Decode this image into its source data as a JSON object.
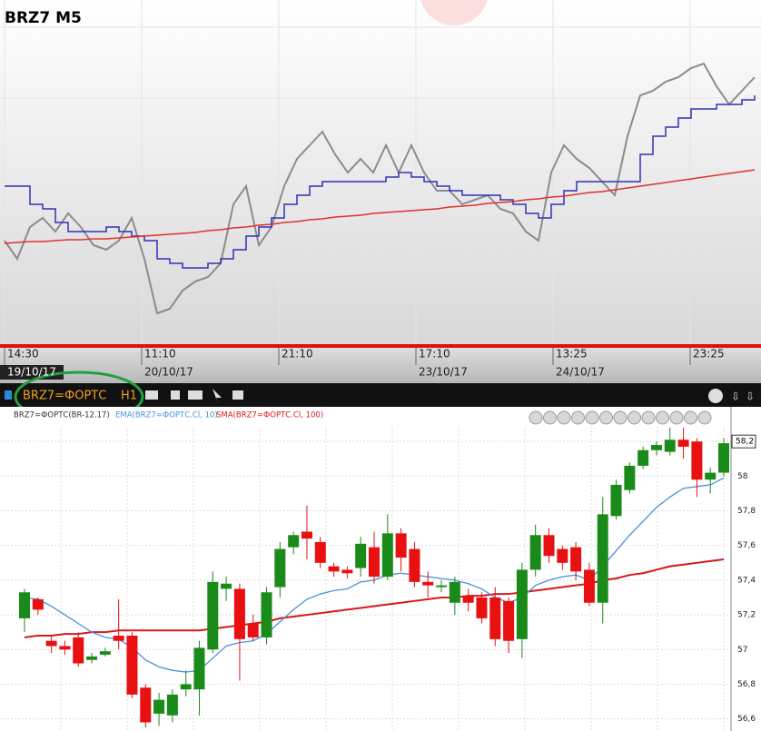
{
  "top_chart": {
    "type": "line",
    "title": "BRZ7 M5",
    "time_labels": [
      "14:30",
      "11:10",
      "21:10",
      "17:10",
      "13:25",
      "23:25"
    ],
    "date_labels": [
      "19/10/17",
      "20/10/17",
      "23/10/17",
      "24/10/17"
    ],
    "ylim": [
      0,
      358
    ],
    "series": [
      {
        "color": "#8c8c8c",
        "values": [
          113,
          93,
          128,
          138,
          123,
          143,
          128,
          108,
          103,
          113,
          138,
          93,
          33,
          38,
          58,
          68,
          73,
          88,
          153,
          173,
          108,
          128,
          173,
          203,
          218,
          233,
          208,
          188,
          203,
          188,
          218,
          188,
          218,
          188,
          168,
          168,
          153,
          158,
          163,
          148,
          143,
          123,
          113,
          188,
          218,
          203,
          193,
          178,
          163,
          228,
          273,
          278,
          288,
          293,
          303,
          308,
          283,
          263,
          278,
          293
        ]
      },
      {
        "color": "#3030b8",
        "step": true,
        "values": [
          173,
          173,
          153,
          148,
          133,
          123,
          123,
          123,
          128,
          123,
          118,
          113,
          93,
          88,
          83,
          83,
          88,
          93,
          103,
          118,
          128,
          138,
          153,
          163,
          173,
          178,
          178,
          178,
          178,
          178,
          183,
          188,
          183,
          178,
          173,
          168,
          163,
          163,
          163,
          158,
          153,
          143,
          138,
          153,
          168,
          178,
          178,
          178,
          178,
          178,
          208,
          228,
          238,
          248,
          258,
          258,
          263,
          263,
          268,
          273
        ]
      },
      {
        "color": "#e03030",
        "values": [
          110,
          111,
          112,
          112,
          113,
          114,
          114,
          115,
          115,
          116,
          117,
          118,
          119,
          120,
          121,
          122,
          124,
          125,
          127,
          128,
          130,
          131,
          133,
          134,
          136,
          137,
          139,
          140,
          141,
          143,
          144,
          145,
          146,
          147,
          148,
          150,
          151,
          152,
          154,
          155,
          156,
          158,
          159,
          161,
          162,
          164,
          166,
          167,
          169,
          171,
          173,
          175,
          177,
          179,
          181,
          183,
          185,
          187,
          189,
          191
        ]
      }
    ]
  },
  "toolbar": {
    "symbol": "BRZ7=ФОРТС",
    "timeframe": "H1"
  },
  "bottom_chart": {
    "type": "candlestick",
    "legend": [
      "BRZ7=ФОРТС(BR-12.17)",
      "EMA(BRZ7=ФОРТС.Cl, 10)",
      "SMA(BRZ7=ФОРТС.Cl, 100)"
    ],
    "up_color": "#1a8a1a",
    "down_color": "#e81010",
    "ylim": [
      56.53,
      58.4
    ],
    "yticks": [
      {
        "value": 56.6,
        "label": "56,6"
      },
      {
        "value": 56.8,
        "label": "56,8"
      },
      57,
      {
        "value": 57.2,
        "label": "57,2"
      },
      {
        "value": 57.4,
        "label": "57,4"
      },
      {
        "value": 57.6,
        "label": "57,6"
      },
      {
        "value": 57.8,
        "label": "57,8"
      },
      58,
      {
        "value": 58.2,
        "label": "58,2"
      }
    ],
    "last_price": {
      "value": 58.2,
      "label": "58,2"
    },
    "open": [
      57.18,
      57.29,
      57.05,
      57.02,
      57.07,
      56.94,
      56.97,
      57.08,
      57.08,
      56.78,
      56.63,
      56.62,
      56.77,
      56.77,
      57.0,
      57.35,
      57.35,
      57.15,
      57.07,
      57.36,
      57.59,
      57.68,
      57.62,
      57.48,
      57.46,
      57.47,
      57.59,
      57.42,
      57.67,
      57.58,
      57.39,
      57.36,
      57.27,
      57.31,
      57.3,
      57.3,
      57.28,
      57.06,
      57.46,
      57.66,
      57.58,
      57.59,
      57.46,
      57.27,
      57.77,
      57.92,
      58.06,
      58.15,
      58.14,
      58.21,
      58.2,
      57.98,
      58.02
    ],
    "high": [
      57.35,
      57.3,
      57.08,
      57.05,
      57.1,
      56.98,
      57.01,
      57.29,
      57.1,
      56.8,
      56.75,
      56.77,
      56.88,
      57.05,
      57.45,
      57.42,
      57.38,
      57.2,
      57.36,
      57.62,
      57.68,
      57.83,
      57.65,
      57.5,
      57.48,
      57.65,
      57.68,
      57.78,
      57.7,
      57.62,
      57.45,
      57.4,
      57.42,
      57.35,
      57.33,
      57.36,
      57.3,
      57.5,
      57.72,
      57.7,
      57.6,
      57.62,
      57.5,
      57.88,
      57.98,
      58.08,
      58.17,
      58.2,
      58.28,
      58.28,
      58.22,
      58.05,
      58.22
    ],
    "low": [
      57.1,
      57.2,
      56.98,
      56.97,
      56.9,
      56.92,
      56.96,
      57.0,
      56.72,
      56.55,
      56.56,
      56.58,
      56.73,
      56.62,
      56.98,
      57.28,
      56.82,
      57.05,
      57.03,
      57.3,
      57.55,
      57.52,
      57.47,
      57.42,
      57.41,
      57.42,
      57.38,
      57.4,
      57.45,
      57.36,
      57.3,
      57.33,
      57.2,
      57.22,
      57.15,
      57.02,
      56.98,
      56.95,
      57.42,
      57.5,
      57.46,
      57.4,
      57.25,
      57.15,
      57.75,
      57.9,
      58.04,
      58.12,
      58.12,
      58.1,
      57.88,
      57.9,
      58.0
    ],
    "close": [
      57.33,
      57.23,
      57.02,
      57.0,
      56.92,
      56.96,
      56.99,
      57.05,
      56.74,
      56.58,
      56.71,
      56.74,
      56.8,
      57.01,
      57.39,
      57.38,
      57.06,
      57.07,
      57.33,
      57.58,
      57.66,
      57.64,
      57.5,
      57.45,
      57.44,
      57.61,
      57.42,
      57.67,
      57.53,
      57.39,
      57.37,
      57.37,
      57.39,
      57.27,
      57.18,
      57.06,
      57.05,
      57.46,
      57.66,
      57.54,
      57.5,
      57.45,
      57.27,
      57.78,
      57.95,
      58.06,
      58.15,
      58.18,
      58.21,
      58.17,
      57.98,
      58.02,
      58.19
    ],
    "ema": {
      "color": "#4a90d8",
      "values": [
        57.3,
        57.29,
        57.25,
        57.2,
        57.15,
        57.1,
        57.07,
        57.06,
        57.01,
        56.94,
        56.9,
        56.88,
        56.87,
        56.88,
        56.95,
        57.02,
        57.04,
        57.05,
        57.09,
        57.16,
        57.23,
        57.29,
        57.32,
        57.34,
        57.35,
        57.39,
        57.4,
        57.43,
        57.44,
        57.43,
        57.42,
        57.41,
        57.4,
        57.38,
        57.35,
        57.3,
        57.27,
        57.3,
        57.37,
        57.4,
        57.42,
        57.43,
        57.4,
        57.48,
        57.57,
        57.66,
        57.74,
        57.82,
        57.88,
        57.93,
        57.94,
        57.95,
        57.99
      ]
    },
    "sma": {
      "color": "#d81818",
      "values": [
        57.07,
        57.08,
        57.08,
        57.09,
        57.09,
        57.1,
        57.1,
        57.11,
        57.11,
        57.11,
        57.11,
        57.11,
        57.11,
        57.11,
        57.12,
        57.13,
        57.14,
        57.15,
        57.16,
        57.18,
        57.19,
        57.2,
        57.21,
        57.22,
        57.23,
        57.24,
        57.25,
        57.26,
        57.27,
        57.28,
        57.29,
        57.3,
        57.3,
        57.31,
        57.31,
        57.32,
        57.32,
        57.33,
        57.34,
        57.35,
        57.36,
        57.37,
        57.38,
        57.4,
        57.41,
        57.43,
        57.44,
        57.46,
        57.48,
        57.49,
        57.5,
        57.51,
        57.52
      ]
    }
  }
}
